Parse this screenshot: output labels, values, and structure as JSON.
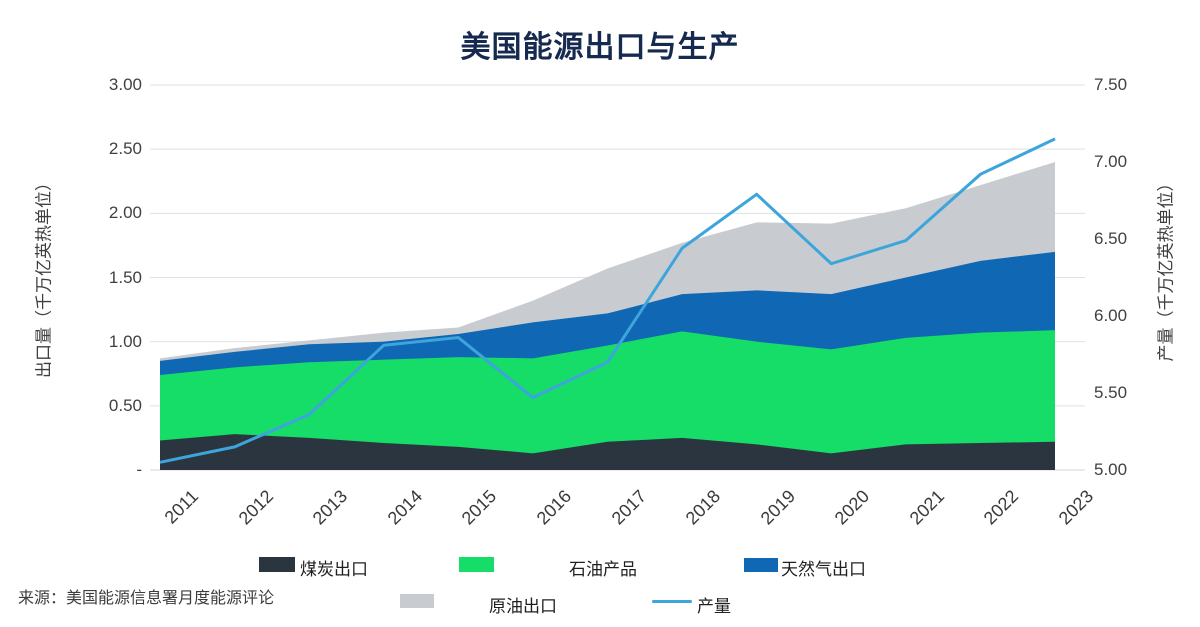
{
  "page": {
    "title": "美国能源出口与生产",
    "source": "来源：美国能源信息署月度能源评论"
  },
  "legend": {
    "coal": "煤炭出口",
    "petroleum": "石油产品",
    "gas": "天然气出口",
    "crude": "原油出口",
    "production": "产量"
  },
  "chart_data": {
    "type": "area",
    "subtype": "stacked-area-with-line-overlay",
    "title": "美国能源出口与生产",
    "categories": [
      "2011",
      "2012",
      "2013",
      "2014",
      "2015",
      "2016",
      "2017",
      "2018",
      "2019",
      "2020",
      "2021",
      "2022",
      "2023"
    ],
    "series": [
      {
        "name": "煤炭出口",
        "key": "coal",
        "axis": "left",
        "color": "#2A3540",
        "values": [
          0.23,
          0.28,
          0.25,
          0.21,
          0.18,
          0.13,
          0.22,
          0.25,
          0.2,
          0.13,
          0.2,
          0.21,
          0.22
        ]
      },
      {
        "name": "石油产品",
        "key": "petroleum",
        "axis": "left",
        "color": "#16DC68",
        "values": [
          0.51,
          0.52,
          0.59,
          0.65,
          0.7,
          0.74,
          0.75,
          0.83,
          0.8,
          0.81,
          0.83,
          0.86,
          0.87
        ]
      },
      {
        "name": "天然气出口",
        "key": "gas",
        "axis": "left",
        "color": "#1067B3",
        "values": [
          0.11,
          0.12,
          0.14,
          0.14,
          0.18,
          0.28,
          0.25,
          0.29,
          0.4,
          0.43,
          0.47,
          0.56,
          0.61
        ]
      },
      {
        "name": "原油出口",
        "key": "crude",
        "axis": "left",
        "color": "#C8CCD0",
        "values": [
          0.02,
          0.03,
          0.03,
          0.07,
          0.05,
          0.17,
          0.35,
          0.4,
          0.53,
          0.55,
          0.54,
          0.59,
          0.7
        ]
      }
    ],
    "line_series": {
      "name": "产量",
      "key": "production",
      "axis": "right",
      "color": "#3DA5DB",
      "values": [
        5.05,
        5.15,
        5.36,
        5.81,
        5.86,
        5.47,
        5.7,
        6.44,
        6.79,
        6.34,
        6.49,
        6.92,
        7.15
      ]
    },
    "left_axis": {
      "label": "出口量（千万亿英热单位）",
      "min": 0,
      "max": 3,
      "tick_labels": [
        "3.00",
        "2.50",
        "2.00",
        "1.50",
        "1.00",
        "0.50",
        "-"
      ]
    },
    "right_axis": {
      "label": "产量（千万亿英热单位）",
      "min": 5,
      "max": 7.5,
      "tick_labels": [
        "7.50",
        "7.00",
        "6.50",
        "6.00",
        "5.50",
        "5.00"
      ]
    },
    "grid": true,
    "legend_position": "bottom",
    "colors": {
      "coal": "#2A3540",
      "petroleum": "#16DC68",
      "gas": "#1067B3",
      "crude": "#C8CCD0",
      "production_line": "#3DA5DB",
      "title_text": "#16294E",
      "grid": "#DEE1E3",
      "baseline": "#D3D6D8"
    }
  }
}
